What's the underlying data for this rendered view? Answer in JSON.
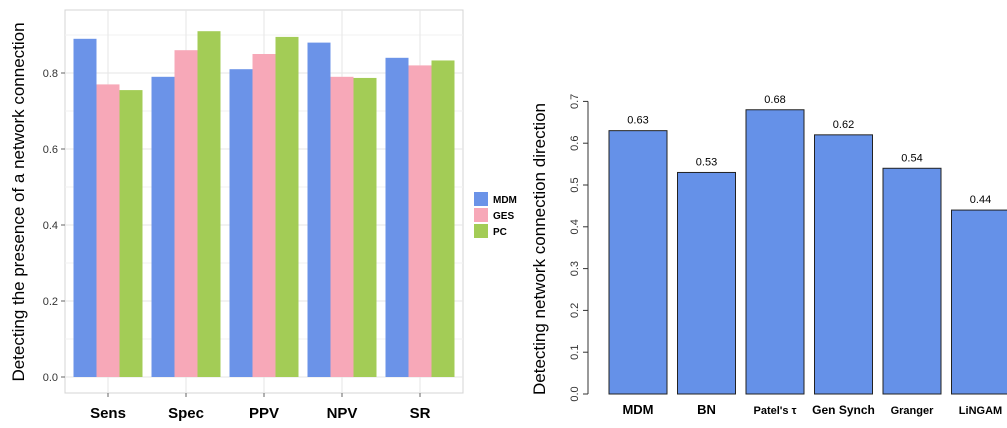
{
  "chart_data": [
    {
      "type": "bar",
      "title": "",
      "xlabel": "",
      "ylabel": "Detecting the presence of a network connection",
      "categories": [
        "Sens",
        "Spec",
        "PPV",
        "NPV",
        "SR"
      ],
      "series": [
        {
          "name": "MDM",
          "values": [
            0.89,
            0.79,
            0.81,
            0.88,
            0.84
          ]
        },
        {
          "name": "GES",
          "values": [
            0.77,
            0.86,
            0.85,
            0.79,
            0.82
          ]
        },
        {
          "name": "PC",
          "values": [
            0.755,
            0.91,
            0.895,
            0.787,
            0.833
          ]
        }
      ],
      "yticks": [
        "0.0",
        "0.2",
        "0.4",
        "0.6",
        "0.8"
      ],
      "ylim": [
        0,
        0.93
      ],
      "grid": true,
      "legend_position": "right"
    },
    {
      "type": "bar",
      "title": "",
      "xlabel": "",
      "ylabel": "Detecting network connection direction",
      "categories": [
        "MDM",
        "BN",
        "Patel's τ",
        "Gen Synch",
        "Granger",
        "LiNGAM"
      ],
      "values": [
        0.63,
        0.53,
        0.68,
        0.62,
        0.54,
        0.44
      ],
      "data_labels": [
        "0.63",
        "0.53",
        "0.68",
        "0.62",
        "0.54",
        "0.44"
      ],
      "yticks": [
        "0.0",
        "0.1",
        "0.2",
        "0.3",
        "0.4",
        "0.5",
        "0.6",
        "0.7"
      ],
      "ylim": [
        0,
        0.72
      ],
      "grid": false,
      "legend_position": "none"
    }
  ],
  "colors": {
    "MDM": "#6b93e8",
    "GES": "#f7a8b8",
    "PC": "#a3cc56",
    "single_bar": "#6591e8",
    "grid": "#e6e6e6",
    "axis": "#888888"
  }
}
